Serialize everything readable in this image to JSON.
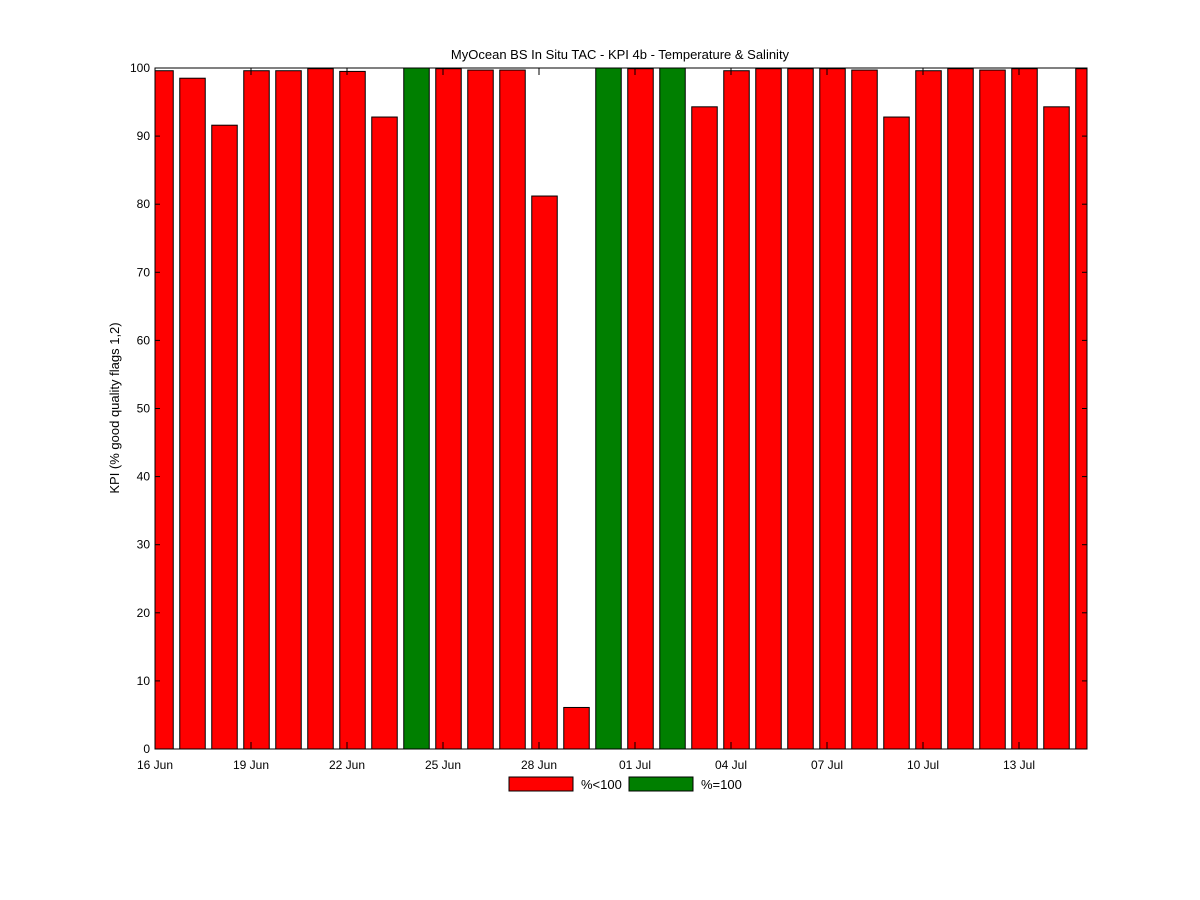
{
  "chart_data": {
    "type": "bar",
    "title": "MyOcean  BS In Situ TAC - KPI 4b - Temperature & Salinity",
    "xlabel": "",
    "ylabel": "KPI (% good quality flags 1,2)",
    "ylim": [
      0,
      100
    ],
    "yticks": [
      0,
      10,
      20,
      30,
      40,
      50,
      60,
      70,
      80,
      90,
      100
    ],
    "xtick_labels": [
      "16 Jun",
      "19 Jun",
      "22 Jun",
      "25 Jun",
      "28 Jun",
      "01 Jul",
      "04 Jul",
      "07 Jul",
      "10 Jul",
      "13 Jul"
    ],
    "xtick_positions": [
      0,
      3,
      6,
      9,
      12,
      15,
      18,
      21,
      24,
      27
    ],
    "x": [
      "16 Jun",
      "17 Jun",
      "18 Jun",
      "19 Jun",
      "20 Jun",
      "21 Jun",
      "22 Jun",
      "23 Jun",
      "24 Jun",
      "25 Jun",
      "26 Jun",
      "27 Jun",
      "28 Jun",
      "29 Jun",
      "30 Jun",
      "01 Jul",
      "02 Jul",
      "03 Jul",
      "04 Jul",
      "05 Jul",
      "06 Jul",
      "07 Jul",
      "08 Jul",
      "09 Jul",
      "10 Jul",
      "11 Jul",
      "12 Jul",
      "13 Jul",
      "14 Jul",
      "15 Jul"
    ],
    "values": [
      99.6,
      98.5,
      91.6,
      99.6,
      99.6,
      99.9,
      99.5,
      92.8,
      100,
      99.9,
      99.7,
      99.7,
      81.2,
      6.1,
      100,
      99.9,
      100,
      94.3,
      99.6,
      99.9,
      99.9,
      99.9,
      99.7,
      92.8,
      99.6,
      99.9,
      99.7,
      99.9,
      94.3,
      99.9
    ],
    "category_flags": [
      "lt",
      "lt",
      "lt",
      "lt",
      "lt",
      "lt",
      "lt",
      "lt",
      "eq",
      "lt",
      "lt",
      "lt",
      "lt",
      "lt",
      "eq",
      "lt",
      "eq",
      "lt",
      "lt",
      "lt",
      "lt",
      "lt",
      "lt",
      "lt",
      "lt",
      "lt",
      "lt",
      "lt",
      "lt",
      "lt"
    ],
    "legend": {
      "placement": "bottom-center",
      "entries": [
        {
          "key": "lt",
          "label": "%<100",
          "color": "#ff0000"
        },
        {
          "key": "eq",
          "label": "%=100",
          "color": "#007f00"
        }
      ]
    },
    "grid": false
  }
}
